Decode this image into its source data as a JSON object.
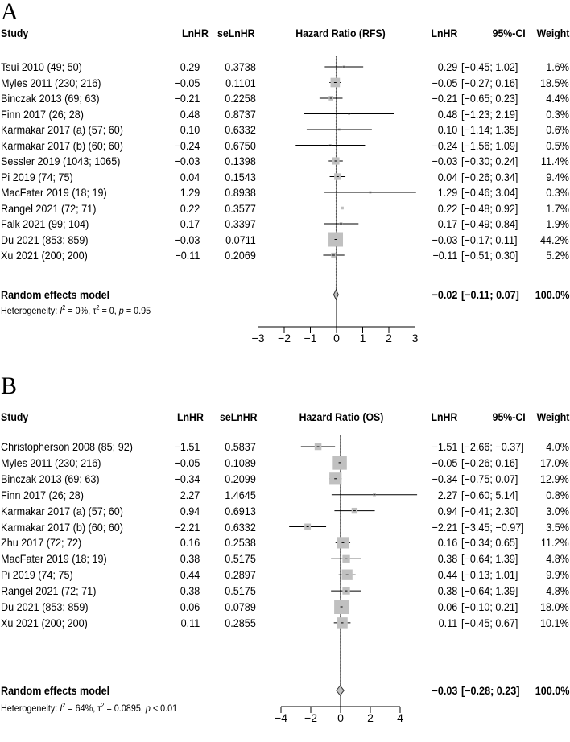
{
  "panels": [
    {
      "letter": "A",
      "headers": {
        "study": "Study",
        "lnhr": "LnHR",
        "selnhr": "seLnHR",
        "plot": "Hazard Ratio (RFS)",
        "lnhr2": "LnHR",
        "ci": "95%-CI",
        "weight": "Weight"
      },
      "rows": [
        {
          "study": "Tsui 2010 (49; 50)",
          "lnhr": "0.29",
          "selnhr": "0.3738",
          "lnhr2": "0.29",
          "ci": "[−0.45; 1.02]",
          "weight": "1.6%"
        },
        {
          "study": "Myles 2011 (230; 216)",
          "lnhr": "−0.05",
          "selnhr": "0.1101",
          "lnhr2": "−0.05",
          "ci": "[−0.27; 0.16]",
          "weight": "18.5%"
        },
        {
          "study": "Binczak 2013 (69; 63)",
          "lnhr": "−0.21",
          "selnhr": "0.2258",
          "lnhr2": "−0.21",
          "ci": "[−0.65; 0.23]",
          "weight": "4.4%"
        },
        {
          "study": "Finn 2017 (26; 28)",
          "lnhr": "0.48",
          "selnhr": "0.8737",
          "lnhr2": "0.48",
          "ci": "[−1.23; 2.19]",
          "weight": "0.3%"
        },
        {
          "study": "Karmakar 2017 (a) (57; 60)",
          "lnhr": "0.10",
          "selnhr": "0.6332",
          "lnhr2": "0.10",
          "ci": "[−1.14; 1.35]",
          "weight": "0.6%"
        },
        {
          "study": "Karmakar 2017 (b) (60; 60)",
          "lnhr": "−0.24",
          "selnhr": "0.6750",
          "lnhr2": "−0.24",
          "ci": "[−1.56; 1.09]",
          "weight": "0.5%"
        },
        {
          "study": "Sessler 2019 (1043; 1065)",
          "lnhr": "−0.03",
          "selnhr": "0.1398",
          "lnhr2": "−0.03",
          "ci": "[−0.30; 0.24]",
          "weight": "11.4%"
        },
        {
          "study": "Pi 2019 (74; 75)",
          "lnhr": "0.04",
          "selnhr": "0.1543",
          "lnhr2": "0.04",
          "ci": "[−0.26; 0.34]",
          "weight": "9.4%"
        },
        {
          "study": "MacFater 2019 (18; 19)",
          "lnhr": "1.29",
          "selnhr": "0.8938",
          "lnhr2": "1.29",
          "ci": "[−0.46; 3.04]",
          "weight": "0.3%"
        },
        {
          "study": "Rangel 2021 (72; 71)",
          "lnhr": "0.22",
          "selnhr": "0.3577",
          "lnhr2": "0.22",
          "ci": "[−0.48; 0.92]",
          "weight": "1.7%"
        },
        {
          "study": "Falk 2021 (99; 104)",
          "lnhr": "0.17",
          "selnhr": "0.3397",
          "lnhr2": "0.17",
          "ci": "[−0.49; 0.84]",
          "weight": "1.9%"
        },
        {
          "study": "Du 2021 (853; 859)",
          "lnhr": "−0.03",
          "selnhr": "0.0711",
          "lnhr2": "−0.03",
          "ci": "[−0.17; 0.11]",
          "weight": "44.2%"
        },
        {
          "study": "Xu 2021 (200; 200)",
          "lnhr": "−0.11",
          "selnhr": "0.2069",
          "lnhr2": "−0.11",
          "ci": "[−0.51; 0.30]",
          "weight": "5.2%"
        }
      ],
      "model": {
        "label": "Random effects model",
        "lnhr2": "−0.02",
        "ci": "[−0.11; 0.07]",
        "weight": "100.0%"
      },
      "heterogeneity": {
        "prefix": "Heterogeneity: ",
        "i2_symbol": "I",
        "i2_value": " = 0%, ",
        "tau_symbol": "τ",
        "tau_value": " = 0, ",
        "p_symbol": "p",
        "p_value": " = 0.95"
      }
    },
    {
      "letter": "B",
      "headers": {
        "study": "Study",
        "lnhr": "LnHR",
        "selnhr": "seLnHR",
        "plot": "Hazard Ratio (OS)",
        "lnhr2": "LnHR",
        "ci": "95%-CI",
        "weight": "Weight"
      },
      "rows": [
        {
          "study": "Christopherson 2008 (85; 92)",
          "lnhr": "−1.51",
          "selnhr": "0.5837",
          "lnhr2": "−1.51",
          "ci": "[−2.66; −0.37]",
          "weight": "4.0%"
        },
        {
          "study": "Myles 2011 (230; 216)",
          "lnhr": "−0.05",
          "selnhr": "0.1089",
          "lnhr2": "−0.05",
          "ci": "[−0.26; 0.16]",
          "weight": "17.0%"
        },
        {
          "study": "Binczak 2013 (69; 63)",
          "lnhr": "−0.34",
          "selnhr": "0.2099",
          "lnhr2": "−0.34",
          "ci": "[−0.75; 0.07]",
          "weight": "12.9%"
        },
        {
          "study": "Finn 2017 (26; 28)",
          "lnhr": "2.27",
          "selnhr": "1.4645",
          "lnhr2": "2.27",
          "ci": "[−0.60; 5.14]",
          "weight": "0.8%"
        },
        {
          "study": "Karmakar 2017 (a) (57; 60)",
          "lnhr": "0.94",
          "selnhr": "0.6913",
          "lnhr2": "0.94",
          "ci": "[−0.41; 2.30]",
          "weight": "3.0%"
        },
        {
          "study": "Karmakar 2017 (b) (60; 60)",
          "lnhr": "−2.21",
          "selnhr": "0.6332",
          "lnhr2": "−2.21",
          "ci": "[−3.45; −0.97]",
          "weight": "3.5%"
        },
        {
          "study": "Zhu 2017 (72; 72)",
          "lnhr": "0.16",
          "selnhr": "0.2538",
          "lnhr2": "0.16",
          "ci": "[−0.34; 0.65]",
          "weight": "11.2%"
        },
        {
          "study": "MacFater 2019 (18; 19)",
          "lnhr": "0.38",
          "selnhr": "0.5175",
          "lnhr2": "0.38",
          "ci": "[−0.64; 1.39]",
          "weight": "4.8%"
        },
        {
          "study": "Pi 2019 (74; 75)",
          "lnhr": "0.44",
          "selnhr": "0.2897",
          "lnhr2": "0.44",
          "ci": "[−0.13; 1.01]",
          "weight": "9.9%"
        },
        {
          "study": "Rangel 2021 (72; 71)",
          "lnhr": "0.38",
          "selnhr": "0.5175",
          "lnhr2": "0.38",
          "ci": "[−0.64; 1.39]",
          "weight": "4.8%"
        },
        {
          "study": "Du 2021 (853; 859)",
          "lnhr": "0.06",
          "selnhr": "0.0789",
          "lnhr2": "0.06",
          "ci": "[−0.10; 0.21]",
          "weight": "18.0%"
        },
        {
          "study": "Xu 2021 (200; 200)",
          "lnhr": "0.11",
          "selnhr": "0.2855",
          "lnhr2": "0.11",
          "ci": "[−0.45; 0.67]",
          "weight": "10.1%"
        }
      ],
      "model": {
        "label": "Random effects model",
        "lnhr2": "−0.03",
        "ci": "[−0.28; 0.23]",
        "weight": "100.0%"
      },
      "heterogeneity": {
        "prefix": "Heterogeneity: ",
        "i2_symbol": "I",
        "i2_value": " = 64%, ",
        "tau_symbol": "τ",
        "tau_value": " = 0.0895, ",
        "p_symbol": "p",
        "p_value": " < 0.01"
      }
    }
  ],
  "chart_data": [
    {
      "type": "forest",
      "plot_title": "Hazard Ratio (RFS)",
      "xlim": [
        -3,
        3
      ],
      "x_ticks": [
        -3,
        -2,
        -1,
        0,
        1,
        2,
        3
      ],
      "x_tick_labels": [
        "−3",
        "−2",
        "−1",
        "0",
        "1",
        "2",
        "3"
      ],
      "reference_line": 0,
      "marker_color": "#c0c0c0",
      "estimate": [
        0.29,
        -0.05,
        -0.21,
        0.48,
        0.1,
        -0.24,
        -0.03,
        0.04,
        1.29,
        0.22,
        0.17,
        -0.03,
        -0.11
      ],
      "ci_lower": [
        -0.45,
        -0.27,
        -0.65,
        -1.23,
        -1.14,
        -1.56,
        -0.3,
        -0.26,
        -0.46,
        -0.48,
        -0.49,
        -0.17,
        -0.51
      ],
      "ci_upper": [
        1.02,
        0.16,
        0.23,
        2.19,
        1.35,
        1.09,
        0.24,
        0.34,
        3.04,
        0.92,
        0.84,
        0.11,
        0.3
      ],
      "weight": [
        1.6,
        18.5,
        4.4,
        0.3,
        0.6,
        0.5,
        11.4,
        9.4,
        0.3,
        1.7,
        1.9,
        44.2,
        5.2
      ],
      "pooled": {
        "estimate": -0.02,
        "ci_lower": -0.11,
        "ci_upper": 0.07
      }
    },
    {
      "type": "forest",
      "plot_title": "Hazard Ratio (OS)",
      "xlim": [
        -4,
        4
      ],
      "x_ticks": [
        -4,
        -2,
        0,
        2,
        4
      ],
      "x_tick_labels": [
        "−4",
        "−2",
        "0",
        "2",
        "4"
      ],
      "reference_line": 0,
      "marker_color": "#c0c0c0",
      "estimate": [
        -1.51,
        -0.05,
        -0.34,
        2.27,
        0.94,
        -2.21,
        0.16,
        0.38,
        0.44,
        0.38,
        0.06,
        0.11
      ],
      "ci_lower": [
        -2.66,
        -0.26,
        -0.75,
        -0.6,
        -0.41,
        -3.45,
        -0.34,
        -0.64,
        -0.13,
        -0.64,
        -0.1,
        -0.45
      ],
      "ci_upper": [
        -0.37,
        0.16,
        0.07,
        5.14,
        2.3,
        -0.97,
        0.65,
        1.39,
        1.01,
        1.39,
        0.21,
        0.67
      ],
      "weight": [
        4.0,
        17.0,
        12.9,
        0.8,
        3.0,
        3.5,
        11.2,
        4.8,
        9.9,
        4.8,
        18.0,
        10.1
      ],
      "pooled": {
        "estimate": -0.03,
        "ci_lower": -0.28,
        "ci_upper": 0.23
      }
    }
  ]
}
